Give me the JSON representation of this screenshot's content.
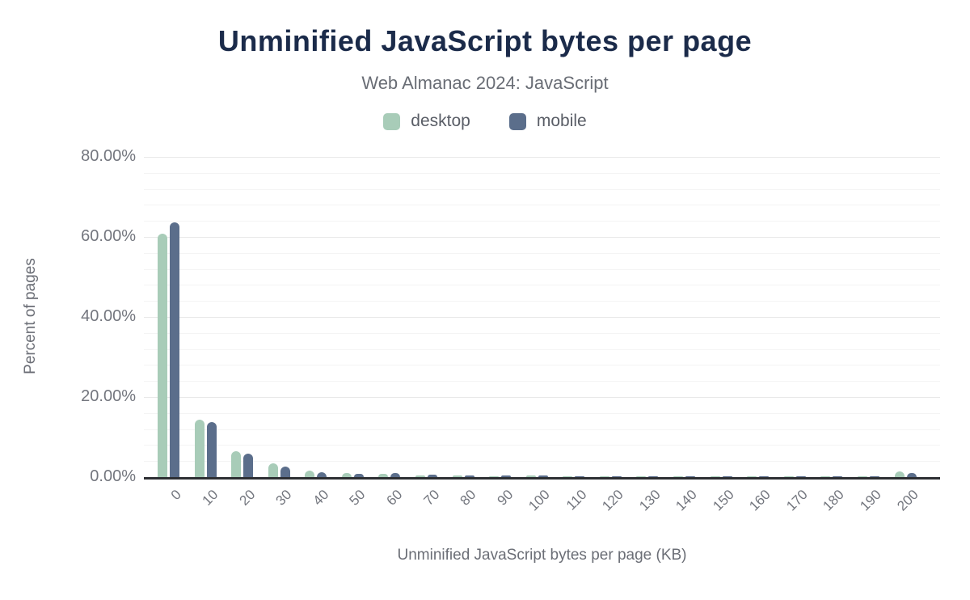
{
  "chart_data": {
    "type": "bar",
    "title": "Unminified JavaScript bytes per page",
    "subtitle": "Web Almanac 2024: JavaScript",
    "xlabel": "Unminified JavaScript bytes per page (KB)",
    "ylabel": "Percent of pages",
    "ylim": [
      0,
      80
    ],
    "ytick_interval": 20,
    "minor_grid_interval": 4,
    "grid": true,
    "legend_position": "top",
    "yticks": [
      "0.00%",
      "20.00%",
      "40.00%",
      "60.00%",
      "80.00%"
    ],
    "categories": [
      "0",
      "10",
      "20",
      "30",
      "40",
      "50",
      "60",
      "70",
      "80",
      "90",
      "100",
      "110",
      "120",
      "130",
      "140",
      "150",
      "160",
      "170",
      "180",
      "190",
      "200"
    ],
    "series": [
      {
        "name": "desktop",
        "color": "#a8ccb8",
        "values": [
          60.9,
          14.4,
          6.5,
          3.4,
          1.6,
          1.0,
          0.9,
          0.5,
          0.4,
          0.3,
          0.4,
          0.2,
          0.2,
          0.1,
          0.1,
          0.1,
          0.1,
          0.1,
          0.2,
          0.2,
          1.5
        ]
      },
      {
        "name": "mobile",
        "color": "#5b6e8b",
        "values": [
          63.6,
          13.7,
          5.8,
          2.6,
          1.2,
          0.8,
          1.1,
          0.6,
          0.4,
          0.4,
          0.5,
          0.2,
          0.2,
          0.1,
          0.1,
          0.1,
          0.1,
          0.1,
          0.2,
          0.2,
          1.1
        ]
      }
    ],
    "colors": {
      "title": "#1b2b4a",
      "subtitle": "#696d75",
      "axis_labels": "#73767e",
      "axis_line": "#2d2f33",
      "background": "#ffffff"
    }
  }
}
